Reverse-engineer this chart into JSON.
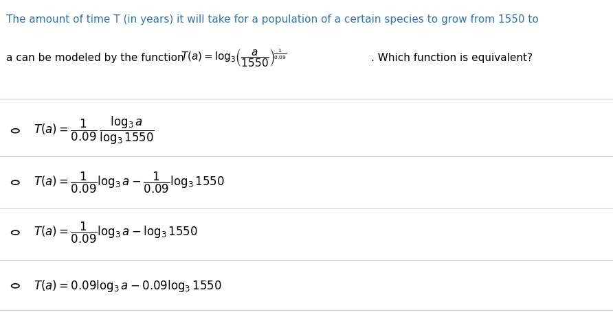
{
  "background_color": "#ffffff",
  "header_text": "The amount of time T (in years) it will take for a population of a certain species to grow from 1550 to",
  "header_color": "#2e74b5",
  "body_text_color": "#000000",
  "figure_width": 8.92,
  "figure_height": 4.71,
  "dpi": 100,
  "divider_color": "#cccccc",
  "circle_color": "#000000",
  "intro_line2_prefix": "a can be modeled by the function ",
  "intro_line2_suffix": ". Which function is equivalent?"
}
